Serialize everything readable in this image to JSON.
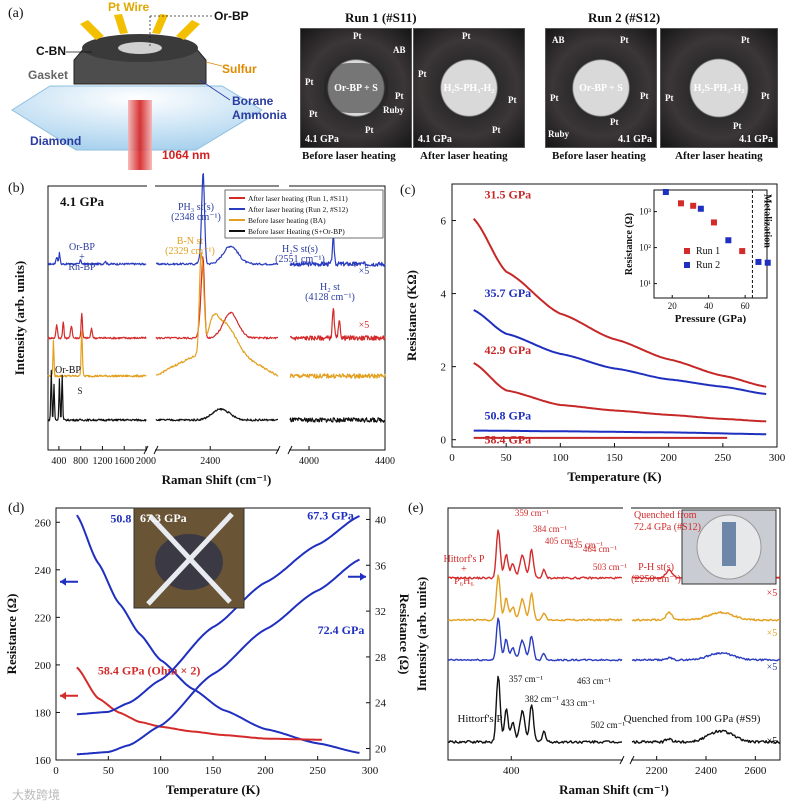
{
  "panel_a": {
    "label": "(a)",
    "diagram_labels": {
      "pt_wire": "Pt Wire",
      "or_bp": "Or-BP",
      "c_bn": "C-BN",
      "gasket": "Gasket",
      "sulfur": "Sulfur",
      "borane": "Borane",
      "ammonia": "Ammonia",
      "diamond": "Diamond",
      "laser": "1064 nm"
    },
    "run1_title": "Run 1 (#S11)",
    "run2_title": "Run 2 (#S12)",
    "photos": [
      {
        "pressure": "4.1 GPa",
        "center": "Or-BP + S",
        "labels": [
          "Pt",
          "Pt",
          "AB",
          "Pt",
          "Pt",
          "Ruby",
          "Pt"
        ],
        "caption": "Before laser heating"
      },
      {
        "pressure": "4.1 GPa",
        "center": "H₂S-PH₃-H₂",
        "labels": [
          "Pt",
          "Pt",
          "Pt",
          "Pt"
        ],
        "caption": "After laser heating"
      },
      {
        "pressure": "4.1 GPa",
        "center": "Or-BP + S",
        "labels": [
          "AB",
          "Pt",
          "Pt",
          "Pt",
          "Pt",
          "Ruby"
        ],
        "caption": "Before laser heating"
      },
      {
        "pressure": "4.1 GPa",
        "center": "H₂S-PH₃-H₂",
        "labels": [
          "Pt",
          "Pt",
          "Pt",
          "Pt"
        ],
        "caption": "After laser heating"
      }
    ]
  },
  "chart_data": [
    {
      "panel": "(b)",
      "type": "line",
      "title": "4.1 GPa",
      "xlabel": "Raman Shift (cm⁻¹)",
      "ylabel": "Intensity (arb. units)",
      "x_segments": [
        [
          200,
          2000
        ],
        [
          2000,
          2900
        ],
        [
          3900,
          4400
        ]
      ],
      "xticks": [
        "400",
        "800",
        "1200",
        "1600",
        "2000",
        "2400",
        "4000",
        "4400"
      ],
      "legend": [
        "After laser heating (Run 1, #S11)",
        "After laser heating (Run 2, #S12)",
        "Before laser heating (BA)",
        "Before laser Heating (S+Or-BP)"
      ],
      "series_colors": [
        "#d42a2a",
        "#2a3cbf",
        "#e3a020",
        "#111111"
      ],
      "annotations": [
        "Or-BP",
        "+",
        "Rh-BP",
        "PH₃ st(s)",
        "(2348 cm⁻¹)",
        "H₂S st(s)",
        "(2551 cm⁻¹)",
        "B-N st",
        "(2329 cm⁻¹)",
        "H₂ st",
        "(4128 cm⁻¹)",
        "×5",
        "×5",
        "Or-BP",
        "S",
        "*"
      ]
    },
    {
      "panel": "(c)",
      "type": "line",
      "xlabel": "Temperature (K)",
      "ylabel": "Resistance (KΩ)",
      "xlim": [
        0,
        300
      ],
      "ylim": [
        -0.2,
        7
      ],
      "xticks": [
        "0",
        "50",
        "100",
        "150",
        "200",
        "250",
        "300"
      ],
      "yticks": [
        "0",
        "2",
        "4",
        "6"
      ],
      "series": [
        {
          "name": "31.5 GPa",
          "color": "#c62828",
          "x": [
            20,
            50,
            100,
            150,
            200,
            250,
            290
          ],
          "y": [
            6.05,
            4.6,
            3.45,
            2.75,
            2.2,
            1.75,
            1.45
          ]
        },
        {
          "name": "35.7 GPa",
          "color": "#1f2fbf",
          "x": [
            20,
            50,
            100,
            150,
            200,
            250,
            290
          ],
          "y": [
            3.55,
            2.9,
            2.35,
            1.95,
            1.65,
            1.45,
            1.25
          ]
        },
        {
          "name": "42.9 GPa",
          "color": "#c62828",
          "x": [
            20,
            50,
            100,
            150,
            200,
            250,
            290
          ],
          "y": [
            2.1,
            1.35,
            0.95,
            0.8,
            0.68,
            0.57,
            0.5
          ]
        },
        {
          "name": "50.8 GPa",
          "color": "#1f2fbf",
          "x": [
            20,
            100,
            200,
            290
          ],
          "y": [
            0.25,
            0.23,
            0.2,
            0.15
          ]
        },
        {
          "name": "58.4 GPa",
          "color": "#c62828",
          "x": [
            20,
            100,
            200,
            255
          ],
          "y": [
            0.05,
            0.05,
            0.05,
            0.05
          ]
        }
      ],
      "inset": {
        "type": "scatter",
        "xlabel": "Pressure (GPa)",
        "ylabel": "Resistance (Ω)",
        "xlim": [
          10,
          72
        ],
        "yticks": [
          "10¹",
          "10²",
          "10³"
        ],
        "xticks": [
          "20",
          "40",
          "60"
        ],
        "annotation": "Metalization",
        "series": [
          {
            "name": "Run 1",
            "color": "#d42a2a",
            "x": [
              24.8,
              31.5,
              42.9,
              58.4
            ],
            "y": [
              1700,
              1450,
              500,
              80
            ]
          },
          {
            "name": "Run 2",
            "color": "#1f2fbf",
            "x": [
              16.5,
              35.7,
              50.8,
              67.3,
              72.4
            ],
            "y": [
              3500,
              1200,
              160,
              40,
              38
            ]
          }
        ]
      }
    },
    {
      "panel": "(d)",
      "type": "line",
      "xlabel": "Temperature (K)",
      "ylabel": "Resistance (Ω)",
      "y2label": "Resistance (Ω)",
      "xlim": [
        0,
        300
      ],
      "ylim": [
        160,
        266
      ],
      "y2lim": [
        19,
        41
      ],
      "xticks": [
        "0",
        "50",
        "100",
        "150",
        "200",
        "250",
        "300"
      ],
      "yticks": [
        "160",
        "180",
        "200",
        "220",
        "240",
        "260"
      ],
      "y2ticks": [
        "20",
        "24",
        "28",
        "32",
        "36",
        "40"
      ],
      "photo_label": "67.3 GPa",
      "series": [
        {
          "name": "50.8 GPa",
          "axis": "left",
          "color": "#1f2fbf",
          "x": [
            20,
            40,
            60,
            80,
            100,
            130,
            160,
            200,
            250,
            290
          ],
          "y": [
            263,
            243,
            226,
            213,
            202,
            190,
            181,
            173,
            167,
            163
          ]
        },
        {
          "name": "58.4 GPa (Ohm × 2)",
          "axis": "left",
          "color": "#d42a2a",
          "x": [
            20,
            40,
            60,
            80,
            100,
            130,
            160,
            200,
            255
          ],
          "y": [
            199,
            186,
            180,
            176,
            174,
            172,
            170.5,
            169,
            168.5
          ]
        },
        {
          "name": "67.3 GPa",
          "axis": "right",
          "color": "#1f2fbf",
          "x": [
            20,
            50,
            70,
            100,
            150,
            200,
            250,
            290
          ],
          "y": [
            23,
            23.2,
            24,
            26,
            30.6,
            34.5,
            37.8,
            40.3
          ]
        },
        {
          "name": "72.4 GPa",
          "axis": "right",
          "color": "#1f2fbf",
          "x": [
            20,
            50,
            70,
            100,
            150,
            200,
            250,
            290
          ],
          "y": [
            19.5,
            19.7,
            20.3,
            22,
            26.5,
            30.4,
            33.8,
            36.5
          ]
        }
      ]
    },
    {
      "panel": "(e)",
      "type": "line",
      "xlabel": "Raman Shift (cm⁻¹)",
      "ylabel": "Intensity (arb. units)",
      "x_segments": [
        [
          200,
          750
        ],
        [
          2100,
          2700
        ]
      ],
      "xticks": [
        "400",
        "2200",
        "2400",
        "2600"
      ],
      "series_colors": [
        "#d42a2a",
        "#e3a020",
        "#2a3cbf",
        "#111111"
      ],
      "annotations": [
        "359 cm⁻¹",
        "384 cm⁻¹",
        "405 cm⁻¹",
        "435 cm⁻¹",
        "464 cm⁻¹",
        "503 cm⁻¹",
        "357 cm⁻¹",
        "382 cm⁻¹",
        "433 cm⁻¹",
        "463 cm⁻¹",
        "502 cm⁻¹",
        "Hittorf's P",
        "+",
        "P₆H₆",
        "Hittorf's P",
        "Quenched from",
        "72.4 GPa (#S12)",
        "P-H st(s)",
        "(2250 cm⁻¹)",
        "Quenched from 100 GPa (#S9)",
        "×5",
        "×5",
        "×5",
        "×5"
      ]
    }
  ],
  "watermark": "大数跨境"
}
